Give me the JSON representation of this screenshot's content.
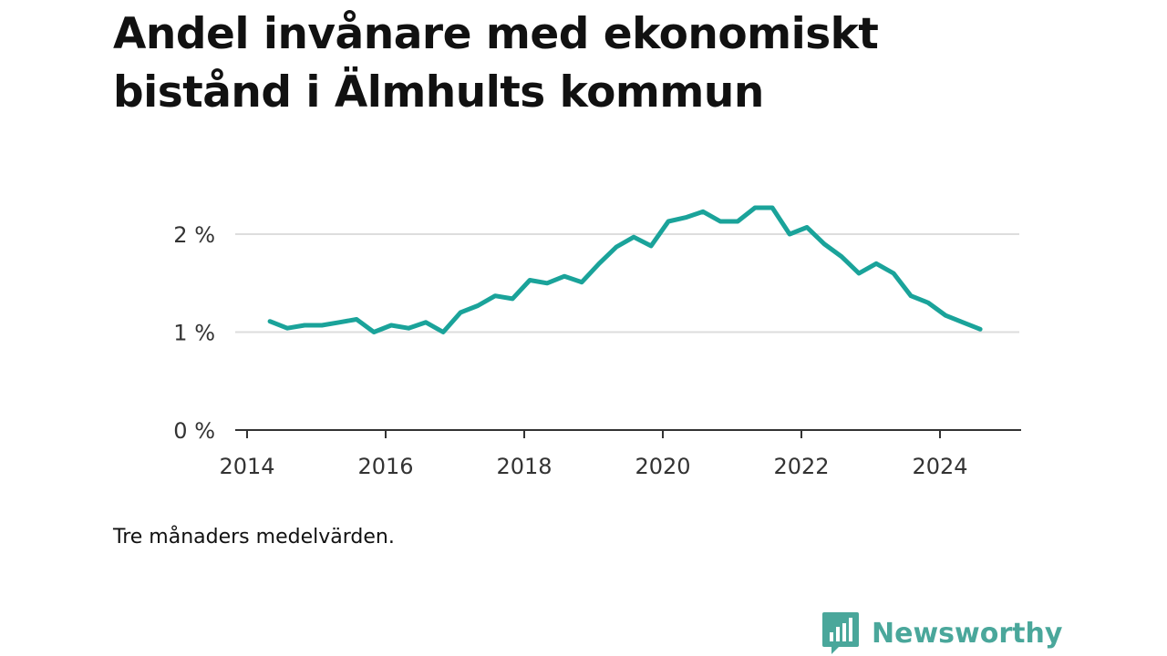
{
  "title_line1": "Andel invånare med ekonomiskt",
  "title_line2": "bistånd i Älmhults kommun",
  "note": "Tre månaders medelvärden.",
  "brand": {
    "name": "Newsworthy",
    "icon": "bar-chart-logo-icon",
    "color": "#4aa79b"
  },
  "chart_data": {
    "type": "line",
    "title": "Andel invånare med ekonomiskt bistånd i Älmhults kommun",
    "xlabel": "",
    "ylabel": "",
    "xlim": [
      2014.0,
      2025.1
    ],
    "ylim": [
      0,
      2.4
    ],
    "x_ticks": [
      2014,
      2016,
      2018,
      2020,
      2022,
      2024
    ],
    "x_tick_labels": [
      "2014",
      "2016",
      "2018",
      "2020",
      "2022",
      "2024"
    ],
    "y_ticks": [
      0,
      1,
      2
    ],
    "y_tick_labels": [
      "0 %",
      "1 %",
      "2 %"
    ],
    "grid": "horizontal",
    "line_color": "#1aa39a",
    "series": [
      {
        "x": [
          2014.33,
          2014.58,
          2014.83,
          2015.08,
          2015.33,
          2015.58,
          2015.83,
          2016.08,
          2016.33,
          2016.58,
          2016.83,
          2017.08,
          2017.33,
          2017.58,
          2017.83,
          2018.08,
          2018.33,
          2018.58,
          2018.83,
          2019.08,
          2019.33,
          2019.58,
          2019.83,
          2020.08,
          2020.33,
          2020.58,
          2020.83,
          2021.08,
          2021.33,
          2021.58,
          2021.83,
          2022.08,
          2022.33,
          2022.58,
          2022.83,
          2023.08,
          2023.33,
          2023.58,
          2023.83,
          2024.08,
          2024.33,
          2024.58
        ],
        "y": [
          1.11,
          1.04,
          1.07,
          1.07,
          1.1,
          1.13,
          1.0,
          1.07,
          1.04,
          1.1,
          1.0,
          1.2,
          1.27,
          1.37,
          1.34,
          1.53,
          1.5,
          1.57,
          1.51,
          1.7,
          1.87,
          1.97,
          1.88,
          2.13,
          2.17,
          2.23,
          2.13,
          2.13,
          2.27,
          2.27,
          2.0,
          2.07,
          1.9,
          1.77,
          1.6,
          1.7,
          1.6,
          1.37,
          1.3,
          1.17,
          1.1,
          1.03
        ]
      }
    ]
  }
}
